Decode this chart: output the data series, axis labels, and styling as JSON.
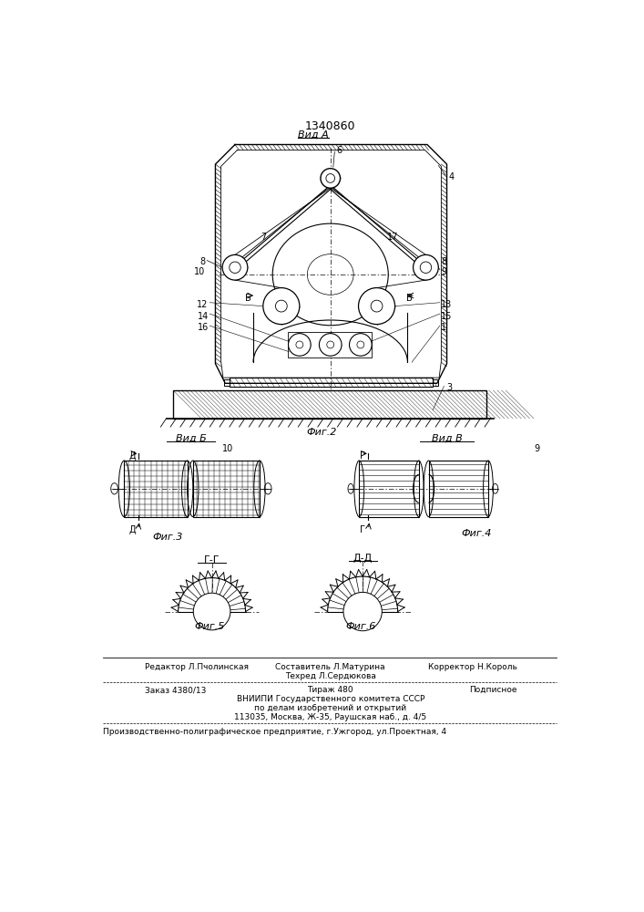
{
  "patent_number": "1340860",
  "background_color": "#ffffff",
  "title_text": "1340860",
  "vid_a_label": "Вид А",
  "vid_b_label": "Вид Б",
  "vid_v_label": "Вид В",
  "fig2_label": "Фиг.2",
  "fig3_label": "Фиг.3",
  "fig4_label": "Фиг.4",
  "fig5_label": "Фиг.5",
  "fig6_label": "Фиг.6",
  "gg_label": "Г-Г",
  "dd_label": "Д-Д",
  "footer_line1_left": "Редактор Л.Пчолинская",
  "footer_line1_center": "Составитель Л.Матурина",
  "footer_line1_right": "Корректор Н.Король",
  "footer_line2_center": "Техред Л.Сердюкова",
  "footer_line3_left": "Заказ 4380/13",
  "footer_line3_center": "Тираж 480",
  "footer_line3_right": "Подписное",
  "footer_line4": "ВНИИПИ Государственного комитета СССР",
  "footer_line5": "по делам изобретений и открытий",
  "footer_line6": "113035, Москва, Ж-35, Раушская наб., д. 4/5",
  "footer_bottom": "Производственно-полиграфическое предприятие, г.Ужгород, ул.Проектная, 4"
}
